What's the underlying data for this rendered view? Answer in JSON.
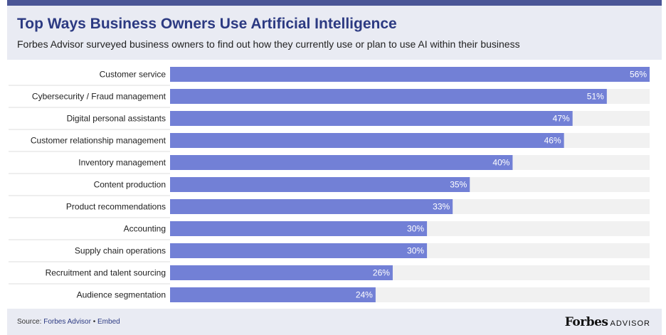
{
  "header": {
    "title": "Top Ways Business Owners Use Artificial Intelligence",
    "subtitle": "Forbes Advisor surveyed business owners to find out how they currently use or plan to use AI within their business"
  },
  "chart_data": {
    "type": "bar",
    "orientation": "horizontal",
    "categories": [
      "Customer service",
      "Cybersecurity / Fraud management",
      "Digital personal assistants",
      "Customer relationship management",
      "Inventory management",
      "Content production",
      "Product recommendations",
      "Accounting",
      "Supply chain operations",
      "Recruitment and talent sourcing",
      "Audience segmentation"
    ],
    "values": [
      56,
      51,
      47,
      46,
      40,
      35,
      33,
      30,
      30,
      26,
      24
    ],
    "labels": [
      "56%",
      "51%",
      "47%",
      "46%",
      "40%",
      "35%",
      "33%",
      "30%",
      "30%",
      "26%",
      "24%"
    ],
    "xlim": [
      0,
      56
    ],
    "grid": false,
    "colors": {
      "bar": "#7280d6",
      "track": "#f1f1f1",
      "separator": "#dddddd"
    }
  },
  "footer": {
    "source_prefix": "Source: ",
    "source_link": "Forbes Advisor",
    "separator": " • ",
    "embed_link": "Embed",
    "brand_name": "Forbes",
    "brand_sub": "ADVISOR"
  }
}
